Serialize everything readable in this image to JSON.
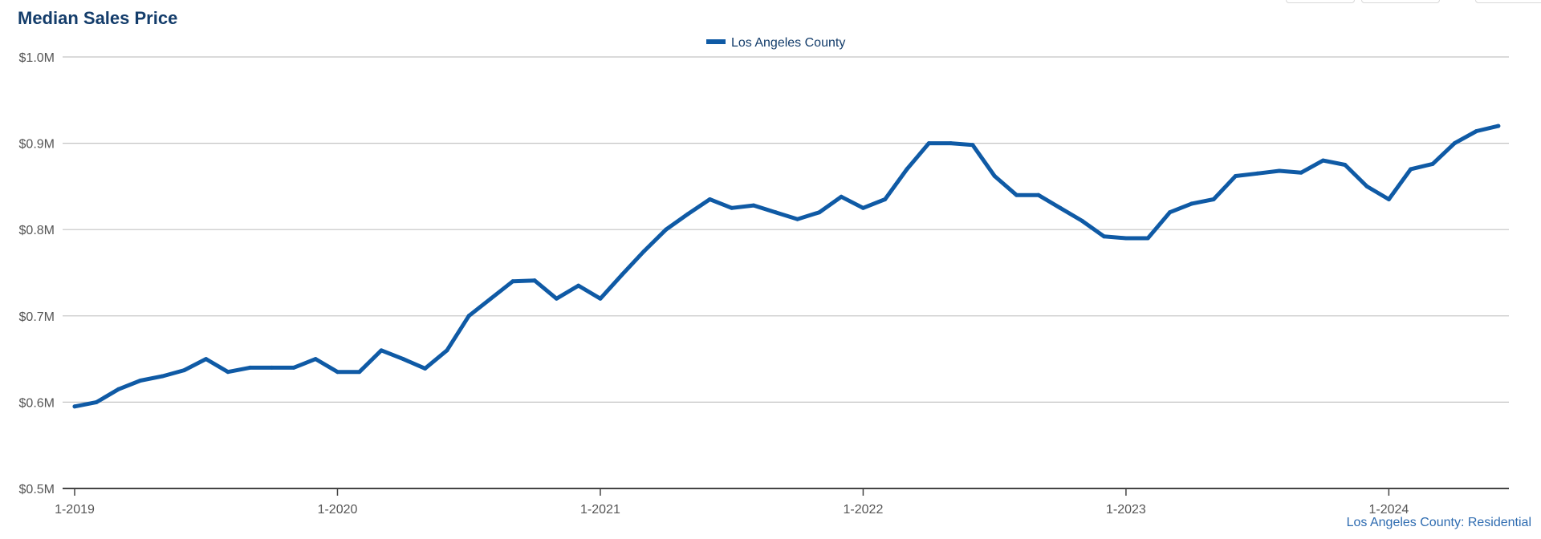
{
  "chart_data": {
    "type": "line",
    "title": "Median Sales Price",
    "source_note": "Los Angeles County: Residential",
    "legend": {
      "position": "top-center"
    },
    "ylim": [
      0.5,
      1.0
    ],
    "y_ticks": [
      {
        "value": 0.5,
        "label": "$0.5M"
      },
      {
        "value": 0.6,
        "label": "$0.6M"
      },
      {
        "value": 0.7,
        "label": "$0.7M"
      },
      {
        "value": 0.8,
        "label": "$0.8M"
      },
      {
        "value": 0.9,
        "label": "$0.9M"
      },
      {
        "value": 1.0,
        "label": "$1.0M"
      }
    ],
    "x_ticks": [
      {
        "value": "2019-01",
        "label": "1-2019"
      },
      {
        "value": "2020-01",
        "label": "1-2020"
      },
      {
        "value": "2021-01",
        "label": "1-2021"
      },
      {
        "value": "2022-01",
        "label": "1-2022"
      },
      {
        "value": "2023-01",
        "label": "1-2023"
      },
      {
        "value": "2024-01",
        "label": "1-2024"
      }
    ],
    "grid": true,
    "series": [
      {
        "name": "Los Angeles County",
        "color": "#0f5aa5",
        "x": [
          "2019-01",
          "2019-02",
          "2019-03",
          "2019-04",
          "2019-05",
          "2019-06",
          "2019-07",
          "2019-08",
          "2019-09",
          "2019-10",
          "2019-11",
          "2019-12",
          "2020-01",
          "2020-02",
          "2020-03",
          "2020-04",
          "2020-05",
          "2020-06",
          "2020-07",
          "2020-08",
          "2020-09",
          "2020-10",
          "2020-11",
          "2020-12",
          "2021-01",
          "2021-02",
          "2021-03",
          "2021-04",
          "2021-05",
          "2021-06",
          "2021-07",
          "2021-08",
          "2021-09",
          "2021-10",
          "2021-11",
          "2021-12",
          "2022-01",
          "2022-02",
          "2022-03",
          "2022-04",
          "2022-05",
          "2022-06",
          "2022-07",
          "2022-08",
          "2022-09",
          "2022-10",
          "2022-11",
          "2022-12",
          "2023-01",
          "2023-02",
          "2023-03",
          "2023-04",
          "2023-05",
          "2023-06",
          "2023-07",
          "2023-08",
          "2023-09",
          "2023-10",
          "2023-11",
          "2023-12",
          "2024-01",
          "2024-02",
          "2024-03",
          "2024-04",
          "2024-05",
          "2024-06"
        ],
        "values": [
          0.595,
          0.6,
          0.615,
          0.625,
          0.63,
          0.637,
          0.65,
          0.635,
          0.64,
          0.64,
          0.64,
          0.65,
          0.635,
          0.635,
          0.66,
          0.65,
          0.639,
          0.66,
          0.7,
          0.72,
          0.74,
          0.741,
          0.72,
          0.735,
          0.72,
          0.748,
          0.775,
          0.8,
          0.818,
          0.835,
          0.825,
          0.828,
          0.82,
          0.812,
          0.82,
          0.838,
          0.825,
          0.835,
          0.87,
          0.9,
          0.9,
          0.898,
          0.862,
          0.84,
          0.84,
          0.825,
          0.81,
          0.792,
          0.79,
          0.79,
          0.82,
          0.83,
          0.835,
          0.862,
          0.865,
          0.868,
          0.866,
          0.88,
          0.875,
          0.85,
          0.835,
          0.87,
          0.876,
          0.9,
          0.914,
          0.92
        ]
      }
    ]
  }
}
